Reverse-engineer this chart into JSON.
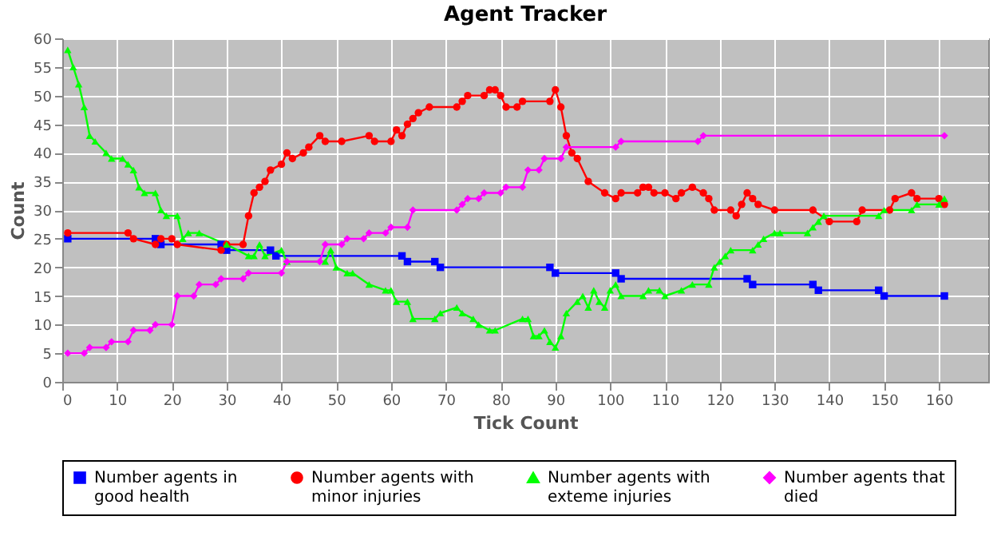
{
  "chart_data": {
    "type": "line",
    "title": "Agent Tracker",
    "xlabel": "Tick Count",
    "ylabel": "Count",
    "xlim": [
      0,
      169
    ],
    "ylim": [
      0,
      60
    ],
    "xticks": [
      0,
      10,
      20,
      30,
      40,
      50,
      60,
      70,
      80,
      90,
      100,
      110,
      120,
      130,
      140,
      150,
      160
    ],
    "yticks": [
      0,
      5,
      10,
      15,
      20,
      25,
      30,
      35,
      40,
      45,
      50,
      55,
      60
    ],
    "grid": true,
    "legend": "bottom",
    "line_style": "solid",
    "series": [
      {
        "name": "Number agents in good health",
        "color": "#0000ff",
        "marker": "square",
        "x": [
          1,
          17,
          18,
          29,
          30,
          38,
          39,
          62,
          63,
          68,
          69,
          89,
          90,
          101,
          102,
          125,
          126,
          137,
          138,
          149,
          150,
          161
        ],
        "values": [
          25,
          25,
          24,
          24,
          23,
          23,
          22,
          22,
          21,
          21,
          20,
          20,
          19,
          19,
          18,
          18,
          17,
          17,
          16,
          16,
          15,
          15
        ]
      },
      {
        "name": "Number agents with minor injuries",
        "color": "#ff0000",
        "marker": "circle",
        "x": [
          1,
          12,
          13,
          17,
          18,
          20,
          21,
          29,
          30,
          33,
          34,
          35,
          36,
          37,
          38,
          40,
          41,
          42,
          44,
          45,
          47,
          48,
          51,
          56,
          57,
          60,
          61,
          62,
          63,
          64,
          65,
          67,
          72,
          73,
          74,
          77,
          78,
          79,
          80,
          81,
          83,
          84,
          89,
          90,
          91,
          92,
          93,
          94,
          96,
          99,
          101,
          102,
          105,
          106,
          107,
          108,
          110,
          112,
          113,
          115,
          117,
          118,
          119,
          122,
          123,
          124,
          125,
          126,
          127,
          130,
          137,
          140,
          145,
          146,
          151,
          152,
          155,
          156,
          160,
          161
        ],
        "values": [
          26,
          26,
          25,
          24,
          25,
          25,
          24,
          23,
          24,
          24,
          29,
          33,
          34,
          35,
          37,
          38,
          40,
          39,
          40,
          41,
          43,
          42,
          42,
          43,
          42,
          42,
          44,
          43,
          45,
          46,
          47,
          48,
          48,
          49,
          50,
          50,
          51,
          51,
          50,
          48,
          48,
          49,
          49,
          51,
          48,
          43,
          40,
          39,
          35,
          33,
          32,
          33,
          33,
          34,
          34,
          33,
          33,
          32,
          33,
          34,
          33,
          32,
          30,
          30,
          29,
          31,
          33,
          32,
          31,
          30,
          30,
          28,
          28,
          30,
          30,
          32,
          33,
          32,
          32,
          31
        ]
      },
      {
        "name": "Number agents with exteme injuries",
        "color": "#00ff00",
        "marker": "triangle",
        "x": [
          1,
          2,
          3,
          4,
          5,
          6,
          8,
          9,
          11,
          12,
          13,
          14,
          15,
          17,
          18,
          19,
          21,
          22,
          23,
          25,
          30,
          34,
          35,
          36,
          37,
          40,
          41,
          48,
          49,
          50,
          52,
          53,
          56,
          59,
          60,
          61,
          63,
          64,
          68,
          69,
          72,
          73,
          75,
          76,
          78,
          79,
          84,
          85,
          86,
          87,
          88,
          89,
          90,
          91,
          92,
          94,
          95,
          96,
          97,
          98,
          99,
          100,
          101,
          102,
          106,
          107,
          109,
          110,
          113,
          115,
          118,
          119,
          120,
          121,
          122,
          126,
          127,
          128,
          130,
          131,
          136,
          137,
          138,
          139,
          149,
          150,
          155,
          156,
          160,
          161
        ],
        "values": [
          58,
          55,
          52,
          48,
          43,
          42,
          40,
          39,
          39,
          38,
          37,
          34,
          33,
          33,
          30,
          29,
          29,
          25,
          26,
          26,
          24,
          22,
          22,
          24,
          22,
          23,
          21,
          21,
          23,
          20,
          19,
          19,
          17,
          16,
          16,
          14,
          14,
          11,
          11,
          12,
          13,
          12,
          11,
          10,
          9,
          9,
          11,
          11,
          8,
          8,
          9,
          7,
          6,
          8,
          12,
          14,
          15,
          13,
          16,
          14,
          13,
          16,
          17,
          15,
          15,
          16,
          16,
          15,
          16,
          17,
          17,
          20,
          21,
          22,
          23,
          23,
          24,
          25,
          26,
          26,
          26,
          27,
          28,
          29,
          29,
          30,
          30,
          31,
          31,
          32
        ]
      },
      {
        "name": "Number agents that died",
        "color": "#ff00ff",
        "marker": "diamond",
        "x": [
          1,
          4,
          5,
          8,
          9,
          12,
          13,
          16,
          17,
          20,
          21,
          24,
          25,
          28,
          29,
          33,
          34,
          40,
          41,
          47,
          48,
          51,
          52,
          55,
          56,
          59,
          60,
          63,
          64,
          72,
          73,
          74,
          76,
          77,
          80,
          81,
          84,
          85,
          87,
          88,
          91,
          92,
          101,
          102,
          116,
          117,
          161
        ],
        "values": [
          5,
          5,
          6,
          6,
          7,
          7,
          9,
          9,
          10,
          10,
          15,
          15,
          17,
          17,
          18,
          18,
          19,
          19,
          21,
          21,
          24,
          24,
          25,
          25,
          26,
          26,
          27,
          27,
          30,
          30,
          31,
          32,
          32,
          33,
          33,
          34,
          34,
          37,
          37,
          39,
          39,
          41,
          41,
          42,
          42,
          43,
          43
        ]
      }
    ]
  }
}
